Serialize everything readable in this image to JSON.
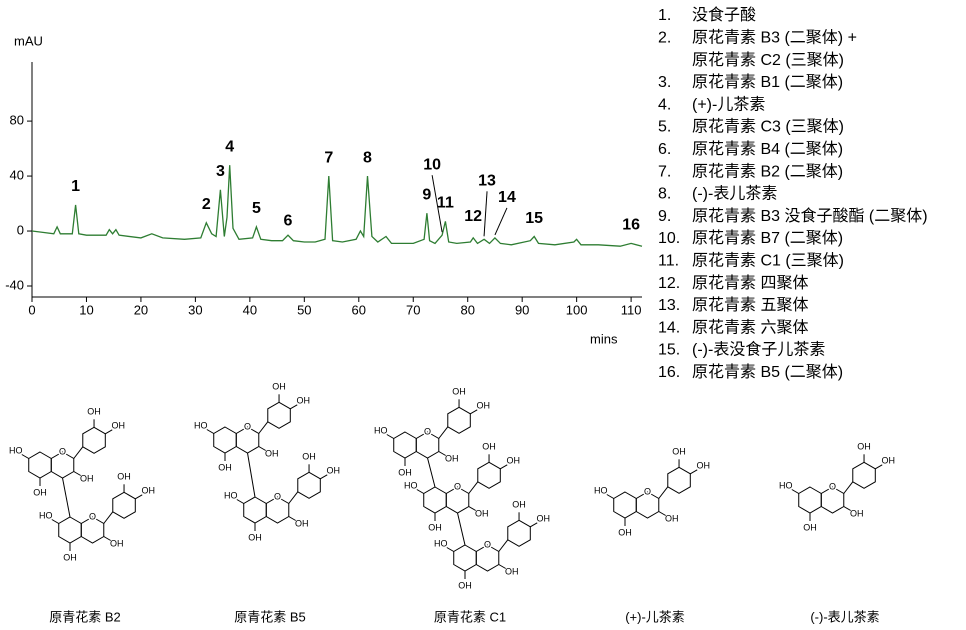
{
  "chart_data": {
    "type": "line",
    "y_label": "mAU",
    "x_label": "mins",
    "color": "#2e7d32",
    "xlim": [
      0,
      112
    ],
    "xticks": [
      0,
      10,
      20,
      30,
      40,
      50,
      60,
      70,
      80,
      90,
      100,
      110
    ],
    "ylim": [
      -48,
      123
    ],
    "yticks": [
      -40,
      0,
      40,
      80
    ],
    "x": [
      0,
      2,
      4,
      4.6,
      5.2,
      7.4,
      8,
      8.6,
      10,
      13.6,
      14.2,
      14.8,
      15.4,
      16,
      20,
      22,
      24,
      28,
      31,
      32,
      33,
      33.8,
      34.6,
      35.3,
      35.8,
      36.3,
      36.9,
      38,
      40.5,
      41.2,
      42,
      44,
      46,
      47,
      48,
      50,
      52,
      53.8,
      54.5,
      55.2,
      57,
      59.5,
      60.3,
      60.9,
      61.6,
      62.4,
      63.5,
      65,
      66,
      68,
      70,
      72,
      72.5,
      73,
      74,
      75.3,
      75.9,
      76.5,
      78,
      80.5,
      81,
      81.8,
      83,
      84,
      85,
      86,
      88,
      91.5,
      92.2,
      93,
      96,
      99.5,
      100,
      100.8,
      104,
      108,
      110,
      112
    ],
    "values": [
      0,
      -1,
      -2,
      3,
      -2,
      -2,
      19,
      -2,
      -3,
      -3,
      1,
      -2,
      1,
      -3,
      -5,
      -2,
      -5,
      -6,
      -5,
      6,
      -2,
      -4,
      30,
      -4,
      10,
      48,
      2,
      -6,
      -5,
      3,
      -6,
      -7,
      -7,
      -3,
      -7,
      -8,
      -8,
      -6,
      40,
      -7,
      -8,
      -6,
      0,
      -4,
      40,
      -4,
      -8,
      -4,
      -9,
      -9,
      -9,
      -6,
      13,
      -7,
      -9,
      -3,
      7,
      -8,
      -9,
      -8,
      -5,
      -9,
      -6,
      -9,
      -5,
      -9,
      -10,
      -7,
      -4,
      -9,
      -10,
      -8,
      -6,
      -10,
      -10,
      -11,
      -9,
      -11
    ],
    "peaks": [
      {
        "label": "1",
        "x": 8,
        "y": 19
      },
      {
        "label": "2",
        "x": 32,
        "y": 6
      },
      {
        "label": "3",
        "x": 34.6,
        "y": 30
      },
      {
        "label": "4",
        "x": 36.3,
        "y": 48
      },
      {
        "label": "5",
        "x": 41.2,
        "y": 3
      },
      {
        "label": "6",
        "x": 47,
        "y": -3
      },
      {
        "label": "7",
        "x": 54.5,
        "y": 40
      },
      {
        "label": "8",
        "x": 61.6,
        "y": 40
      },
      {
        "label": "9",
        "x": 72.5,
        "y": 13
      },
      {
        "label": "10",
        "x": 75.3,
        "y": -3
      },
      {
        "label": "11",
        "x": 75.9,
        "y": 7
      },
      {
        "label": "12",
        "x": 81,
        "y": -5
      },
      {
        "label": "13",
        "x": 83,
        "y": -6
      },
      {
        "label": "14",
        "x": 85,
        "y": -5
      },
      {
        "label": "15",
        "x": 92.2,
        "y": -4
      },
      {
        "label": "16",
        "x": 110,
        "y": -9
      }
    ]
  },
  "legend_items": [
    {
      "number": "1.",
      "lines": [
        "没食子酸"
      ]
    },
    {
      "number": "2.",
      "lines": [
        "原花青素 B3 (二聚体) +",
        "原花青素 C2 (三聚体)"
      ]
    },
    {
      "number": "3.",
      "lines": [
        "原花青素 B1 (二聚体)"
      ]
    },
    {
      "number": "4.",
      "lines": [
        "(+)-儿茶素"
      ]
    },
    {
      "number": "5.",
      "lines": [
        "原花青素 C3 (三聚体)"
      ]
    },
    {
      "number": "6.",
      "lines": [
        "原花青素 B4 (二聚体)"
      ]
    },
    {
      "number": "7.",
      "lines": [
        "原花青素 B2 (二聚体)"
      ]
    },
    {
      "number": "8.",
      "lines": [
        "(-)-表儿茶素"
      ]
    },
    {
      "number": "9.",
      "lines": [
        "原花青素 B3 没食子酸酯 (二聚体)"
      ]
    },
    {
      "number": "10.",
      "lines": [
        "原花青素 B7 (二聚体)"
      ]
    },
    {
      "number": "11.",
      "lines": [
        "原花青素 C1 (三聚体)"
      ]
    },
    {
      "number": "12.",
      "lines": [
        "原花青素 四聚体"
      ]
    },
    {
      "number": "13.",
      "lines": [
        "原花青素 五聚体"
      ]
    },
    {
      "number": "14.",
      "lines": [
        "原花青素 六聚体"
      ]
    },
    {
      "number": "15.",
      "lines": [
        "(-)-表没食子儿茶素"
      ]
    },
    {
      "number": "16.",
      "lines": [
        "原花青素 B5 (二聚体)"
      ]
    }
  ],
  "structures": [
    {
      "name": "原青花素 B2",
      "atoms": [
        "HO",
        "OH",
        "O",
        "OH",
        "OH",
        "OH",
        "HO",
        "OH",
        "O",
        "OH",
        "OH",
        "OH"
      ]
    },
    {
      "name": "原青花素 B5",
      "atoms": [
        "HO",
        "OH",
        "O",
        "OH",
        "OH",
        "OH",
        "HO",
        "OH",
        "O",
        "OH",
        "OH",
        "OH"
      ]
    },
    {
      "name": "原青花素 C1",
      "atoms": [
        "HO",
        "OH",
        "O",
        "OH",
        "OH",
        "OH",
        "HO",
        "OH",
        "O",
        "OH",
        "OH",
        "OH",
        "HO",
        "OH",
        "O",
        "OH",
        "OH",
        "OH"
      ]
    },
    {
      "name": "(+)-儿茶素",
      "atoms": [
        "HO",
        "OH",
        "O",
        "OH",
        "OH",
        "OH"
      ]
    },
    {
      "name": "(-)-表儿茶素",
      "atoms": [
        "HO",
        "OH",
        "O",
        "OH",
        "OH",
        "OH"
      ]
    }
  ]
}
